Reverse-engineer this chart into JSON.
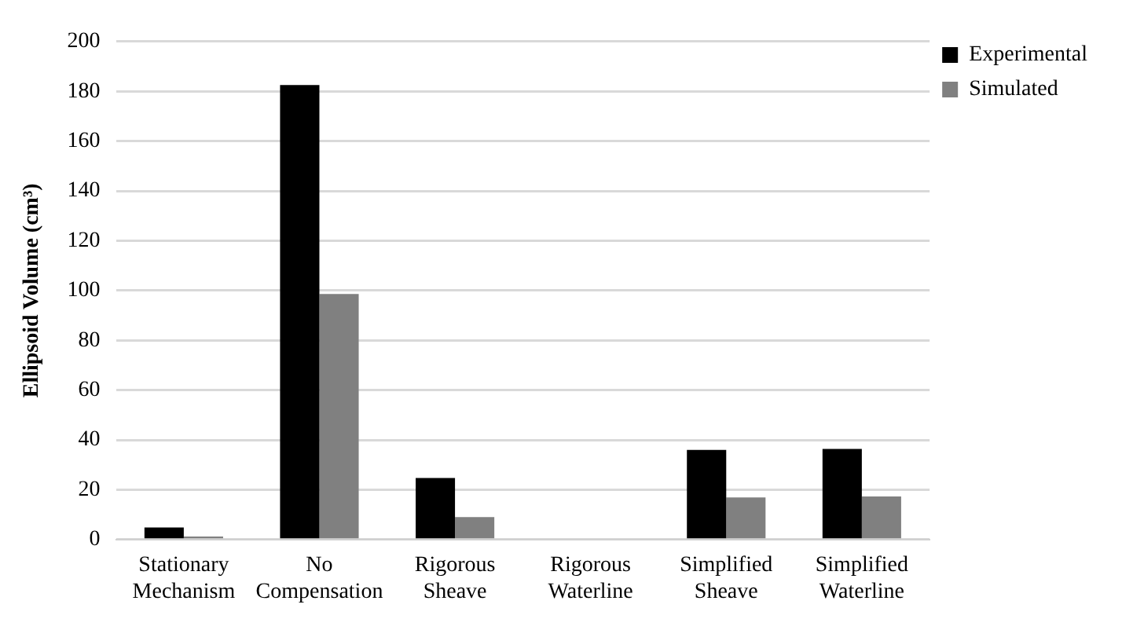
{
  "chart_data": {
    "type": "bar",
    "ylabel": "Ellipsoid Volume (cm³)",
    "categories": [
      "Stationary Mechanism",
      "No Compensation",
      "Rigorous Sheave",
      "Rigorous Waterline",
      "Simplified Sheave",
      "Simplified Waterline"
    ],
    "series": [
      {
        "name": "Experimental",
        "color": "#000000",
        "values": [
          4.8,
          182.5,
          24.7,
          0,
          36,
          36.4
        ]
      },
      {
        "name": "Simulated",
        "color": "#808080",
        "values": [
          1.2,
          98.6,
          9,
          0,
          16.9,
          17.3
        ]
      }
    ],
    "ylim": [
      0,
      200
    ],
    "yticks": [
      0,
      20,
      40,
      60,
      80,
      100,
      120,
      140,
      160,
      180,
      200
    ],
    "grid": "y",
    "legend": "top right"
  }
}
